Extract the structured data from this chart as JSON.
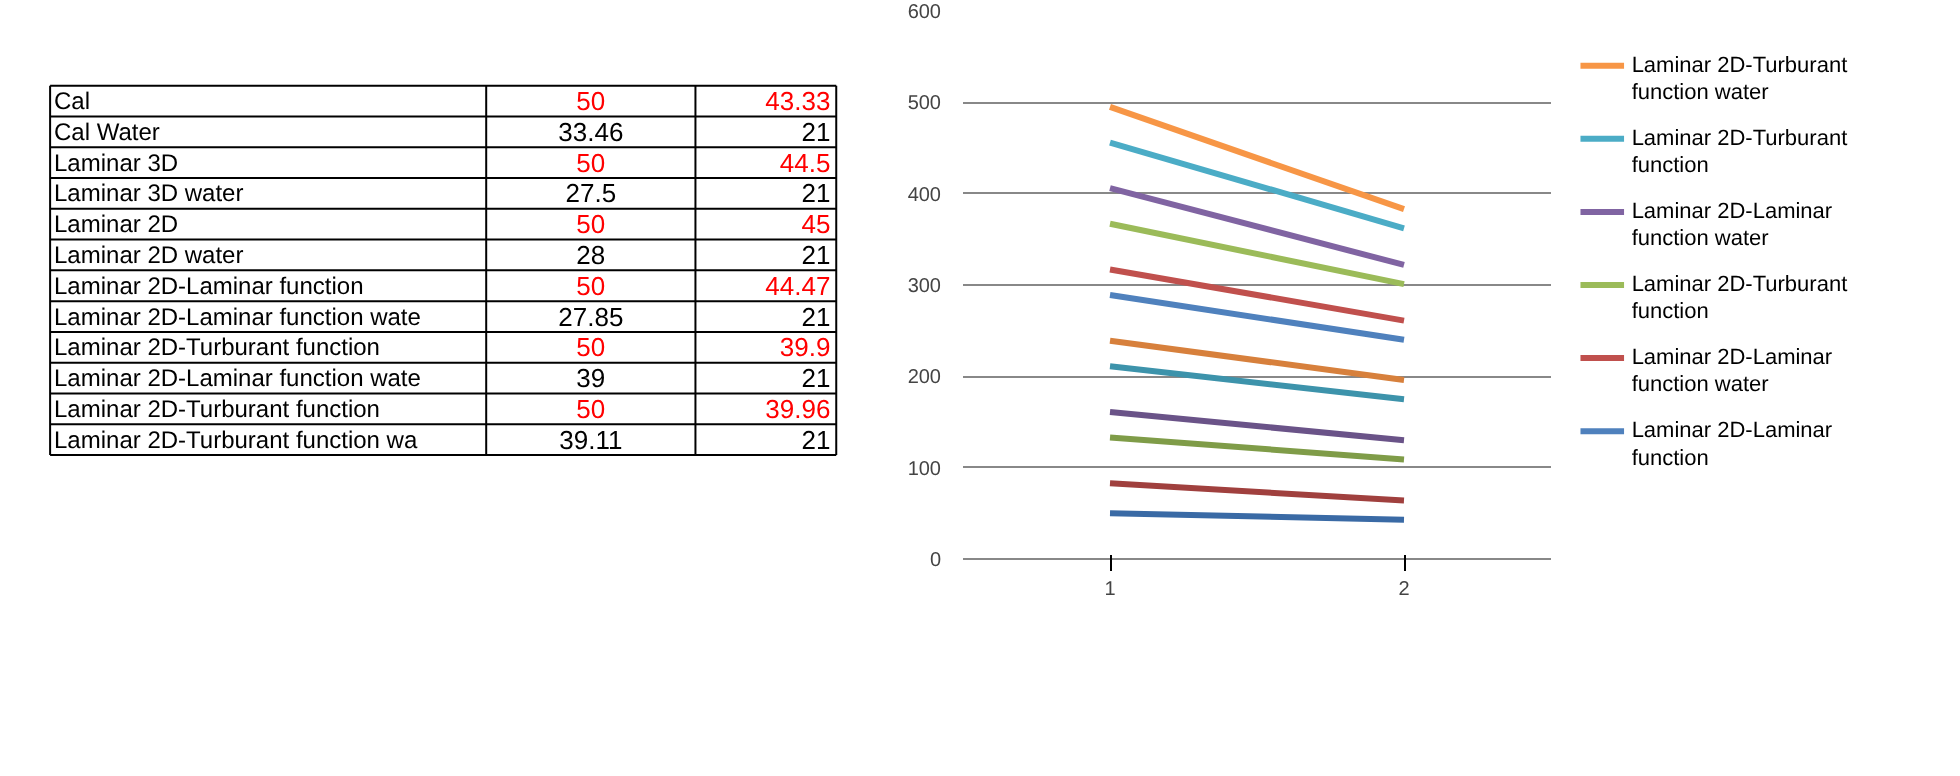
{
  "chart_data": [
    {
      "type": "other",
      "annotations": [
        "Cal",
        "50",
        "43.33",
        "Cal Water",
        "33.46",
        "21",
        "Laminar 3D",
        "50",
        "44.5",
        "Laminar 3D water",
        "27.5",
        "21",
        "Laminar 2D",
        "50",
        "45",
        "Laminar 2D water",
        "28",
        "21",
        "Laminar 2D-Laminar function",
        "50",
        "44.47",
        "Laminar 2D-Laminar function wate",
        "27.85",
        "21",
        "Laminar 2D-Turburant function",
        "50",
        "39.9",
        "Laminar 2D-Laminar function wate",
        "39",
        "21",
        "Laminar 2D-Turburant function",
        "50",
        "39.96",
        "Laminar 2D-Turburant function wa",
        "39.11",
        "21"
      ]
    },
    {
      "type": "line",
      "categories": [
        "1",
        "2"
      ],
      "ylim": [
        0,
        600
      ],
      "yticks": [
        0,
        100,
        200,
        300,
        400,
        500,
        600
      ],
      "grid": "y",
      "legend": "right",
      "series": [
        {
          "color": "#3a6aa5",
          "values": [
            50,
            43
          ]
        },
        {
          "color": "#a0403e",
          "values": [
            83,
            64
          ]
        },
        {
          "color": "#7f9c48",
          "values": [
            133,
            109
          ]
        },
        {
          "color": "#6a5388",
          "values": [
            161,
            130
          ]
        },
        {
          "color": "#3d93ab",
          "values": [
            211,
            175
          ]
        },
        {
          "color": "#d7803c",
          "values": [
            239,
            196
          ]
        },
        {
          "name": "Laminar 2D-Laminar function",
          "color": "#4f81bd",
          "values": [
            289,
            240
          ]
        },
        {
          "name": "Laminar 2D-Laminar function water",
          "color": "#c0504d",
          "values": [
            317,
            261
          ]
        },
        {
          "name": "Laminar 2D-Turburant function",
          "color": "#9bbb59",
          "values": [
            367,
            301
          ]
        },
        {
          "name": "Laminar 2D-Laminar function water",
          "color": "#8064a2",
          "values": [
            406,
            322
          ]
        },
        {
          "name": "Laminar 2D-Turburant function",
          "color": "#4bacc6",
          "values": [
            456,
            362
          ]
        },
        {
          "name": "Laminar 2D-Turburant function water",
          "color": "#f79646",
          "values": [
            495,
            383
          ]
        }
      ]
    }
  ]
}
